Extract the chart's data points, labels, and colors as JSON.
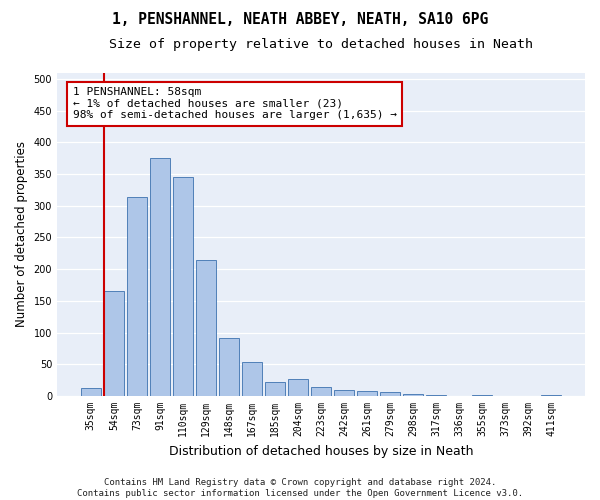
{
  "title": "1, PENSHANNEL, NEATH ABBEY, NEATH, SA10 6PG",
  "subtitle": "Size of property relative to detached houses in Neath",
  "xlabel": "Distribution of detached houses by size in Neath",
  "ylabel": "Number of detached properties",
  "bar_labels": [
    "35sqm",
    "54sqm",
    "73sqm",
    "91sqm",
    "110sqm",
    "129sqm",
    "148sqm",
    "167sqm",
    "185sqm",
    "204sqm",
    "223sqm",
    "242sqm",
    "261sqm",
    "279sqm",
    "298sqm",
    "317sqm",
    "336sqm",
    "355sqm",
    "373sqm",
    "392sqm",
    "411sqm"
  ],
  "bar_values": [
    12,
    165,
    313,
    375,
    345,
    215,
    92,
    54,
    22,
    27,
    14,
    10,
    8,
    6,
    4,
    1,
    0,
    1,
    0,
    0,
    1
  ],
  "bar_color": "#aec6e8",
  "bar_edge_color": "#5080b8",
  "marker_index": 1,
  "red_line_color": "#cc0000",
  "annotation_line1": "1 PENSHANNEL: 58sqm",
  "annotation_line2": "← 1% of detached houses are smaller (23)",
  "annotation_line3": "98% of semi-detached houses are larger (1,635) →",
  "annotation_box_color": "#ffffff",
  "annotation_box_edge": "#cc0000",
  "ylim": [
    0,
    510
  ],
  "yticks": [
    0,
    50,
    100,
    150,
    200,
    250,
    300,
    350,
    400,
    450,
    500
  ],
  "footer_line1": "Contains HM Land Registry data © Crown copyright and database right 2024.",
  "footer_line2": "Contains public sector information licensed under the Open Government Licence v3.0.",
  "bg_color": "#e8eef8",
  "fig_bg_color": "#ffffff",
  "grid_color": "#ffffff",
  "title_fontsize": 10.5,
  "subtitle_fontsize": 9.5,
  "ylabel_fontsize": 8.5,
  "xlabel_fontsize": 9,
  "tick_fontsize": 7,
  "annot_fontsize": 8,
  "footer_fontsize": 6.5
}
